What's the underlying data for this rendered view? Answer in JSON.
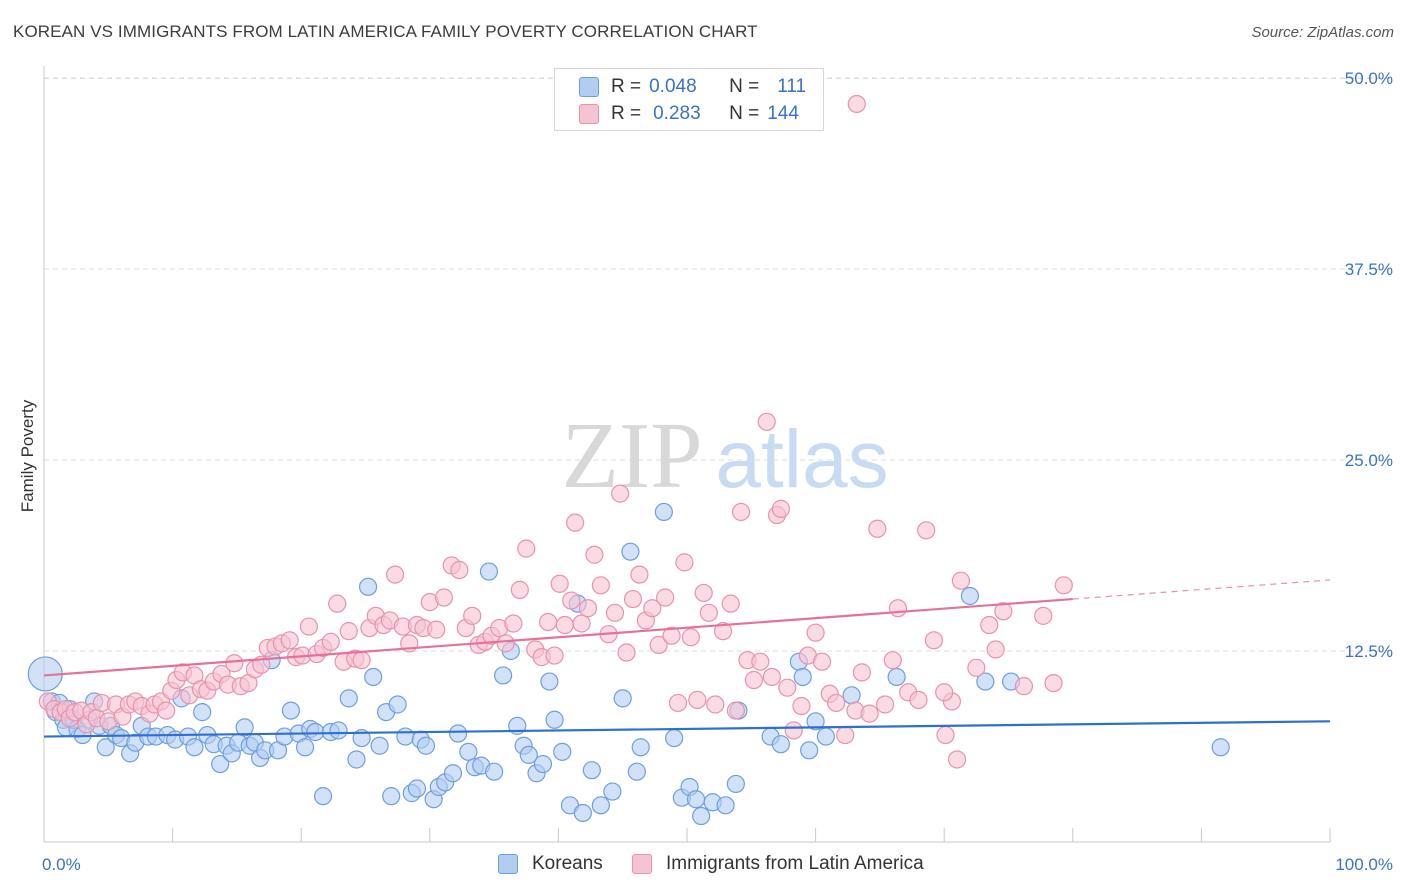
{
  "header": {
    "title": "KOREAN VS IMMIGRANTS FROM LATIN AMERICA FAMILY POVERTY CORRELATION CHART",
    "source": "Source: ZipAtlas.com"
  },
  "watermark": {
    "zip": "ZIP",
    "atlas": "atlas"
  },
  "legend": {
    "r_label": "R =",
    "n_label": "N =",
    "rows": [
      {
        "r": "0.048",
        "n": "111"
      },
      {
        "r": "0.283",
        "n": "144"
      }
    ]
  },
  "colors": {
    "korean_fill": "#b3cdf1",
    "korean_stroke": "#6f9ee0",
    "korean_line": "#2f6fd0",
    "latin_fill": "#f6c3d2",
    "latin_stroke": "#e892ad",
    "latin_line": "#e5709a",
    "tick_label": "#3a72c8",
    "grid": "#dcdcdc"
  },
  "chart_data": {
    "type": "scatter",
    "title": "KOREAN VS IMMIGRANTS FROM LATIN AMERICA FAMILY POVERTY CORRELATION CHART",
    "xlabel": "",
    "ylabel": "Family Poverty",
    "xlim": [
      0,
      100
    ],
    "ylim": [
      0,
      50
    ],
    "x_tick_labels": [
      "0.0%",
      "100.0%"
    ],
    "y_ticks": [
      12.5,
      25.0,
      37.5,
      50.0
    ],
    "y_tick_labels": [
      "12.5%",
      "25.0%",
      "37.5%",
      "50.0%"
    ],
    "grid": "horizontal dashed",
    "legend_position": "top-center",
    "series": [
      {
        "name": "Koreans",
        "r": 0.048,
        "n": 111,
        "trend": {
          "x": [
            0,
            100
          ],
          "y": [
            6.9,
            7.9
          ]
        },
        "points": [
          [
            0.1,
            11
          ],
          [
            0.6,
            9.2
          ],
          [
            0.9,
            8.5
          ],
          [
            1.2,
            9.1
          ],
          [
            1.5,
            8.0
          ],
          [
            1.7,
            7.5
          ],
          [
            2,
            8.7
          ],
          [
            2.3,
            8.0
          ],
          [
            2.6,
            7.4
          ],
          [
            3.0,
            7.0
          ],
          [
            3.5,
            8.0
          ],
          [
            3.9,
            9.2
          ],
          [
            4.3,
            7.6
          ],
          [
            4.8,
            6.2
          ],
          [
            5.2,
            7.6
          ],
          [
            5.6,
            7.0
          ],
          [
            6.0,
            6.8
          ],
          [
            6.7,
            5.8
          ],
          [
            7.1,
            6.5
          ],
          [
            7.6,
            7.6
          ],
          [
            8.1,
            6.9
          ],
          [
            8.7,
            6.9
          ],
          [
            9.6,
            7.0
          ],
          [
            10.2,
            6.7
          ],
          [
            10.7,
            9.4
          ],
          [
            11.2,
            6.9
          ],
          [
            11.7,
            6.2
          ],
          [
            12.3,
            8.5
          ],
          [
            12.7,
            7.0
          ],
          [
            13.2,
            6.4
          ],
          [
            13.7,
            5.1
          ],
          [
            14.2,
            6.3
          ],
          [
            14.6,
            5.8
          ],
          [
            15.1,
            6.5
          ],
          [
            15.6,
            7.5
          ],
          [
            16.0,
            6.3
          ],
          [
            16.4,
            6.5
          ],
          [
            16.8,
            5.5
          ],
          [
            17.2,
            6.0
          ],
          [
            17.7,
            11.9
          ],
          [
            18.2,
            6.0
          ],
          [
            18.7,
            6.9
          ],
          [
            19.2,
            8.6
          ],
          [
            19.8,
            7.1
          ],
          [
            20.3,
            6.2
          ],
          [
            20.7,
            7.4
          ],
          [
            21.1,
            7.2
          ],
          [
            21.7,
            3.0
          ],
          [
            22.3,
            7.2
          ],
          [
            22.9,
            7.3
          ],
          [
            23.7,
            9.4
          ],
          [
            24.3,
            5.4
          ],
          [
            24.7,
            6.8
          ],
          [
            25.2,
            16.7
          ],
          [
            25.6,
            10.8
          ],
          [
            26.1,
            6.3
          ],
          [
            26.6,
            8.5
          ],
          [
            27.0,
            3.0
          ],
          [
            27.5,
            9.0
          ],
          [
            28.1,
            6.9
          ],
          [
            28.6,
            3.2
          ],
          [
            29.0,
            3.5
          ],
          [
            29.3,
            6.7
          ],
          [
            29.7,
            6.3
          ],
          [
            30.3,
            2.8
          ],
          [
            30.7,
            3.6
          ],
          [
            31.2,
            3.9
          ],
          [
            31.8,
            4.5
          ],
          [
            32.2,
            7.1
          ],
          [
            33.0,
            5.9
          ],
          [
            33.5,
            4.9
          ],
          [
            34.0,
            5.0
          ],
          [
            34.6,
            17.7
          ],
          [
            35.0,
            4.6
          ],
          [
            35.7,
            10.9
          ],
          [
            36.3,
            12.5
          ],
          [
            36.8,
            7.6
          ],
          [
            37.3,
            6.3
          ],
          [
            37.7,
            5.7
          ],
          [
            38.3,
            4.5
          ],
          [
            38.8,
            5.1
          ],
          [
            39.3,
            10.5
          ],
          [
            39.7,
            8.0
          ],
          [
            40.3,
            5.9
          ],
          [
            40.9,
            2.4
          ],
          [
            41.5,
            15.6
          ],
          [
            41.9,
            1.9
          ],
          [
            42.6,
            4.7
          ],
          [
            43.3,
            2.4
          ],
          [
            44.2,
            3.3
          ],
          [
            45.0,
            9.4
          ],
          [
            45.6,
            19.0
          ],
          [
            46.1,
            4.6
          ],
          [
            46.4,
            6.2
          ],
          [
            48.2,
            21.6
          ],
          [
            49.0,
            6.8
          ],
          [
            49.6,
            2.9
          ],
          [
            50.2,
            3.6
          ],
          [
            50.7,
            2.8
          ],
          [
            51.1,
            1.7
          ],
          [
            52.0,
            2.6
          ],
          [
            53.0,
            2.4
          ],
          [
            53.8,
            3.8
          ],
          [
            54.0,
            8.6
          ],
          [
            56.5,
            6.9
          ],
          [
            57.3,
            6.4
          ],
          [
            58.7,
            11.8
          ],
          [
            59.0,
            10.8
          ],
          [
            59.5,
            6.0
          ],
          [
            60.0,
            7.9
          ],
          [
            60.8,
            6.9
          ],
          [
            62.8,
            9.6
          ],
          [
            66.3,
            10.8
          ],
          [
            72.0,
            16.1
          ],
          [
            73.2,
            10.5
          ],
          [
            75.2,
            10.5
          ],
          [
            91.5,
            6.2
          ]
        ]
      },
      {
        "name": "Immigrants from Latin America",
        "r": 0.283,
        "n": 144,
        "trend": {
          "x": [
            0,
            80
          ],
          "y": [
            10.9,
            15.9
          ]
        },
        "points": [
          [
            0.3,
            9.2
          ],
          [
            0.8,
            8.7
          ],
          [
            1.3,
            8.5
          ],
          [
            1.7,
            8.7
          ],
          [
            2.0,
            8.1
          ],
          [
            2.4,
            8.5
          ],
          [
            2.9,
            8.6
          ],
          [
            3.3,
            7.7
          ],
          [
            3.7,
            8.5
          ],
          [
            4.1,
            8.1
          ],
          [
            4.5,
            9.1
          ],
          [
            5.0,
            7.9
          ],
          [
            5.6,
            9.0
          ],
          [
            6.1,
            8.2
          ],
          [
            6.6,
            9.0
          ],
          [
            7.1,
            9.2
          ],
          [
            7.6,
            8.9
          ],
          [
            8.2,
            8.4
          ],
          [
            8.6,
            9.0
          ],
          [
            9.1,
            9.2
          ],
          [
            9.5,
            8.6
          ],
          [
            9.9,
            9.9
          ],
          [
            10.3,
            10.6
          ],
          [
            10.8,
            11.1
          ],
          [
            11.3,
            9.6
          ],
          [
            11.7,
            10.9
          ],
          [
            12.2,
            10.0
          ],
          [
            12.7,
            9.9
          ],
          [
            13.2,
            10.5
          ],
          [
            13.8,
            11.0
          ],
          [
            14.3,
            10.3
          ],
          [
            14.8,
            11.7
          ],
          [
            15.3,
            10.2
          ],
          [
            15.9,
            10.4
          ],
          [
            16.4,
            11.3
          ],
          [
            16.9,
            11.6
          ],
          [
            17.4,
            12.7
          ],
          [
            18.0,
            12.8
          ],
          [
            18.5,
            13.0
          ],
          [
            19.1,
            13.2
          ],
          [
            19.6,
            12.1
          ],
          [
            20.1,
            12.2
          ],
          [
            20.6,
            14.1
          ],
          [
            21.2,
            12.3
          ],
          [
            21.7,
            12.7
          ],
          [
            22.3,
            13.1
          ],
          [
            22.8,
            15.6
          ],
          [
            23.3,
            11.8
          ],
          [
            23.7,
            13.8
          ],
          [
            24.2,
            12.0
          ],
          [
            24.7,
            11.9
          ],
          [
            25.3,
            14.0
          ],
          [
            25.8,
            14.8
          ],
          [
            26.4,
            14.2
          ],
          [
            26.9,
            14.5
          ],
          [
            27.3,
            17.5
          ],
          [
            27.9,
            14.1
          ],
          [
            28.4,
            13.0
          ],
          [
            29.0,
            14.2
          ],
          [
            29.5,
            14.0
          ],
          [
            30.0,
            15.7
          ],
          [
            30.5,
            13.9
          ],
          [
            31.1,
            16.0
          ],
          [
            31.7,
            18.1
          ],
          [
            32.3,
            17.8
          ],
          [
            32.8,
            14.0
          ],
          [
            33.3,
            14.8
          ],
          [
            33.8,
            12.9
          ],
          [
            34.3,
            13.1
          ],
          [
            34.8,
            13.5
          ],
          [
            35.4,
            14.0
          ],
          [
            35.9,
            13.0
          ],
          [
            36.5,
            14.3
          ],
          [
            37.0,
            16.5
          ],
          [
            37.5,
            19.2
          ],
          [
            38.2,
            12.6
          ],
          [
            38.7,
            12.1
          ],
          [
            39.2,
            14.4
          ],
          [
            39.7,
            12.2
          ],
          [
            40.1,
            16.9
          ],
          [
            40.5,
            14.2
          ],
          [
            41.0,
            15.8
          ],
          [
            41.3,
            20.9
          ],
          [
            41.8,
            14.3
          ],
          [
            42.3,
            15.3
          ],
          [
            42.8,
            18.8
          ],
          [
            43.3,
            16.8
          ],
          [
            43.9,
            13.6
          ],
          [
            44.4,
            15.0
          ],
          [
            44.8,
            22.8
          ],
          [
            45.3,
            12.4
          ],
          [
            45.8,
            15.9
          ],
          [
            46.3,
            17.5
          ],
          [
            46.8,
            14.5
          ],
          [
            47.3,
            15.3
          ],
          [
            47.8,
            12.9
          ],
          [
            48.3,
            16.0
          ],
          [
            48.8,
            13.5
          ],
          [
            49.3,
            9.1
          ],
          [
            49.8,
            18.3
          ],
          [
            50.3,
            13.4
          ],
          [
            50.8,
            9.3
          ],
          [
            51.3,
            16.3
          ],
          [
            51.7,
            15.0
          ],
          [
            52.2,
            9.0
          ],
          [
            52.8,
            13.8
          ],
          [
            53.4,
            15.6
          ],
          [
            53.8,
            8.6
          ],
          [
            54.2,
            21.6
          ],
          [
            54.7,
            11.9
          ],
          [
            55.2,
            10.6
          ],
          [
            55.7,
            11.8
          ],
          [
            56.2,
            27.5
          ],
          [
            56.6,
            10.8
          ],
          [
            57.0,
            21.4
          ],
          [
            57.3,
            21.8
          ],
          [
            57.8,
            10.1
          ],
          [
            58.3,
            7.3
          ],
          [
            58.9,
            8.9
          ],
          [
            59.4,
            12.2
          ],
          [
            60.0,
            13.7
          ],
          [
            60.5,
            11.8
          ],
          [
            61.1,
            9.7
          ],
          [
            61.6,
            9.1
          ],
          [
            62.3,
            7.0
          ],
          [
            63.1,
            8.6
          ],
          [
            63.6,
            11.1
          ],
          [
            64.2,
            8.4
          ],
          [
            64.8,
            20.5
          ],
          [
            65.4,
            9.0
          ],
          [
            66.0,
            11.9
          ],
          [
            66.4,
            15.3
          ],
          [
            67.2,
            9.8
          ],
          [
            68.0,
            9.3
          ],
          [
            68.6,
            20.4
          ],
          [
            69.2,
            13.2
          ],
          [
            70.1,
            7.0
          ],
          [
            70.6,
            9.2
          ],
          [
            71.3,
            17.1
          ],
          [
            72.5,
            11.4
          ],
          [
            73.5,
            14.2
          ],
          [
            74.0,
            12.6
          ],
          [
            74.6,
            15.1
          ],
          [
            76.2,
            10.2
          ],
          [
            77.7,
            14.8
          ],
          [
            78.5,
            10.4
          ],
          [
            79.3,
            16.8
          ],
          [
            70.0,
            9.8
          ],
          [
            71.0,
            5.4
          ],
          [
            63.2,
            48.3
          ]
        ]
      }
    ]
  },
  "bottom_legend": {
    "items": [
      "Koreans",
      "Immigrants from Latin America"
    ]
  }
}
